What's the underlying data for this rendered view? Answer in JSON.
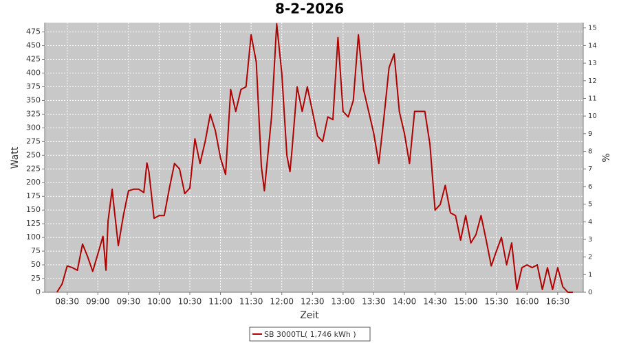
{
  "chart_data": {
    "type": "line",
    "title": "8-2-2026",
    "x_label": "Zeit",
    "y_label": "Watt",
    "y2_label": "%",
    "x": [
      "08:20",
      "08:25",
      "08:30",
      "08:35",
      "08:40",
      "08:45",
      "08:50",
      "08:55",
      "09:00",
      "09:05",
      "09:08",
      "09:10",
      "09:14",
      "09:15",
      "09:20",
      "09:25",
      "09:30",
      "09:35",
      "09:40",
      "09:45",
      "09:48",
      "09:50",
      "09:55",
      "10:00",
      "10:05",
      "10:10",
      "10:15",
      "10:20",
      "10:25",
      "10:30",
      "10:35",
      "10:40",
      "10:45",
      "10:50",
      "10:55",
      "11:00",
      "11:05",
      "11:10",
      "11:15",
      "11:20",
      "11:25",
      "11:30",
      "11:35",
      "11:40",
      "11:43",
      "11:50",
      "11:55",
      "12:00",
      "12:05",
      "12:08",
      "12:10",
      "12:15",
      "12:20",
      "12:25",
      "12:30",
      "12:35",
      "12:40",
      "12:45",
      "12:50",
      "12:55",
      "13:00",
      "13:05",
      "13:10",
      "13:15",
      "13:20",
      "13:25",
      "13:30",
      "13:35",
      "13:40",
      "13:45",
      "13:50",
      "13:55",
      "14:00",
      "14:05",
      "14:10",
      "14:15",
      "14:20",
      "14:25",
      "14:30",
      "14:35",
      "14:40",
      "14:45",
      "14:50",
      "14:55",
      "15:00",
      "15:05",
      "15:10",
      "15:15",
      "15:20",
      "15:25",
      "15:30",
      "15:35",
      "15:40",
      "15:45",
      "15:50",
      "15:55",
      "16:00",
      "16:05",
      "16:10",
      "16:15",
      "16:20",
      "16:25",
      "16:30",
      "16:35",
      "16:40",
      "16:45"
    ],
    "series": [
      {
        "name": "SB 3000TL( 1,746 kWh )",
        "color": "#b00000",
        "values": [
          0,
          15,
          48,
          45,
          40,
          88,
          65,
          38,
          70,
          102,
          40,
          130,
          188,
          170,
          85,
          140,
          185,
          188,
          188,
          182,
          236,
          220,
          135,
          140,
          140,
          190,
          235,
          225,
          180,
          190,
          280,
          235,
          275,
          325,
          295,
          245,
          215,
          370,
          330,
          370,
          375,
          470,
          420,
          230,
          185,
          320,
          490,
          400,
          250,
          220,
          260,
          375,
          330,
          375,
          330,
          285,
          275,
          320,
          315,
          465,
          330,
          320,
          350,
          470,
          370,
          330,
          290,
          235,
          320,
          410,
          435,
          330,
          290,
          235,
          330,
          330,
          330,
          270,
          150,
          160,
          195,
          145,
          140,
          95,
          140,
          90,
          105,
          140,
          95,
          48,
          75,
          100,
          50,
          90,
          5,
          45,
          50,
          45,
          50,
          5,
          45,
          5,
          45,
          10,
          0,
          0
        ]
      }
    ],
    "xlim": [
      "08:08",
      "16:55"
    ],
    "xticks": [
      "08:30",
      "09:00",
      "09:30",
      "10:00",
      "10:30",
      "11:00",
      "11:30",
      "12:00",
      "12:30",
      "13:00",
      "13:30",
      "14:00",
      "14:30",
      "15:00",
      "15:30",
      "16:00",
      "16:30"
    ],
    "ylim": [
      0,
      492
    ],
    "yticks": [
      0,
      25,
      50,
      75,
      100,
      125,
      150,
      175,
      200,
      225,
      250,
      275,
      300,
      325,
      350,
      375,
      400,
      425,
      450,
      475
    ],
    "y2lim": [
      0,
      15.3
    ],
    "y2ticks": [
      0,
      1,
      2,
      3,
      4,
      5,
      6,
      7,
      8,
      9,
      10,
      11,
      12,
      13,
      14,
      15
    ],
    "grid": true
  }
}
